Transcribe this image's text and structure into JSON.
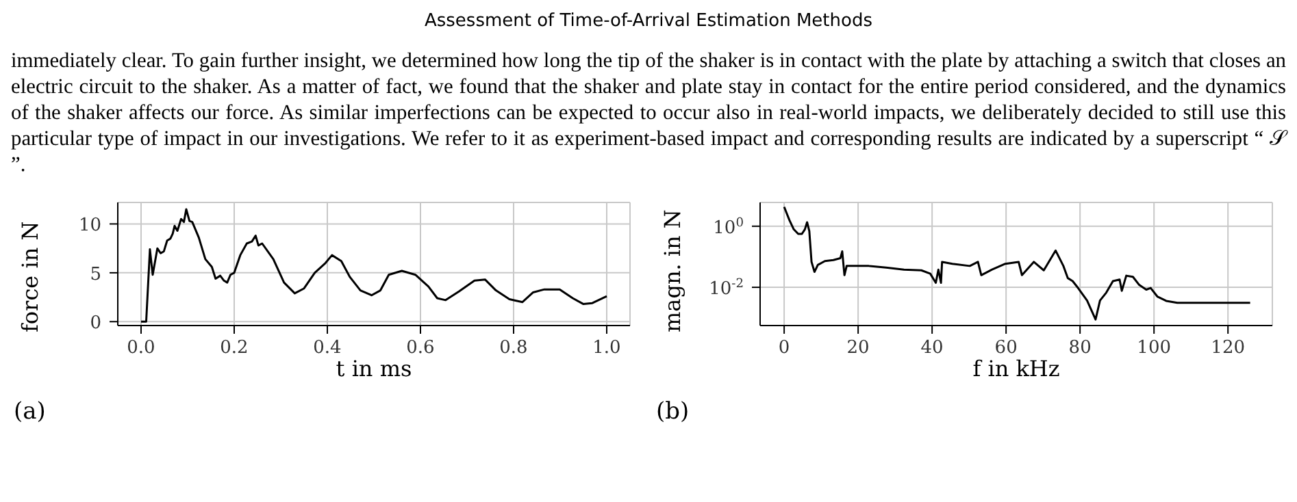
{
  "chart_data": [
    {
      "type": "line",
      "xlabel": "t in ms",
      "ylabel": "force in N",
      "grid": true,
      "annotations": [
        "Assessment of Time-of-Arrival Estimation Methods",
        "immediately clear. To gain further insight, we determined how long the tip of the shaker is in contact with the plate by attaching a switch that closes an electric circuit to the shaker. As a matter of fact, we found that the shaker and plate stay in contact for the entire period considered, and the dynamics of the shaker affects our force. As similar imperfections can be expected to occur also in real-world impacts, we deliberately decided to still use this particular type of impact in our investigations. We refer to it as experiment-based impact and corresponding results are indicated by a superscript “ 𝒮 ”.",
        "(a)"
      ],
      "xlim": [
        -0.05,
        1.05
      ],
      "xticks": [
        {
          "value": 0,
          "label": "0.0"
        },
        0.2,
        0.4,
        0.6,
        0.8,
        {
          "value": 1,
          "label": "1.0"
        }
      ],
      "ylim": [
        -0.4,
        12.2
      ],
      "yticks": [
        0,
        5,
        10
      ],
      "series": [
        {
          "color": "#000000",
          "x": [
            0,
            0.011,
            0.019,
            0.025,
            0.035,
            0.042,
            0.049,
            0.056,
            0.063,
            0.068,
            0.072,
            0.078,
            0.086,
            0.092,
            0.097,
            0.104,
            0.11,
            0.124,
            0.138,
            0.152,
            0.16,
            0.17,
            0.178,
            0.185,
            0.192,
            0.2,
            0.213,
            0.227,
            0.238,
            0.246,
            0.252,
            0.26,
            0.284,
            0.307,
            0.33,
            0.35,
            0.373,
            0.396,
            0.41,
            0.43,
            0.448,
            0.471,
            0.495,
            0.514,
            0.532,
            0.56,
            0.589,
            0.617,
            0.636,
            0.654,
            0.683,
            0.716,
            0.739,
            0.762,
            0.791,
            0.819,
            0.842,
            0.866,
            0.899,
            0.927,
            0.95,
            0.969,
            1.0
          ],
          "values": [
            0,
            0,
            7.4,
            4.8,
            7.5,
            7.0,
            7.2,
            8.3,
            8.5,
            9.0,
            9.8,
            9.3,
            10.5,
            10.2,
            11.5,
            10.3,
            10.2,
            8.6,
            6.4,
            5.6,
            4.4,
            4.7,
            4.2,
            4.0,
            4.8,
            5.0,
            6.8,
            8.0,
            8.2,
            8.8,
            7.8,
            8.0,
            6.4,
            4.0,
            2.9,
            3.4,
            5.0,
            6.0,
            6.8,
            6.2,
            4.6,
            3.2,
            2.7,
            3.2,
            4.8,
            5.2,
            4.8,
            3.6,
            2.4,
            2.2,
            3.1,
            4.2,
            4.3,
            3.2,
            2.3,
            2.0,
            3.0,
            3.3,
            3.3,
            2.4,
            1.8,
            1.9,
            2.6
          ]
        }
      ]
    },
    {
      "type": "line",
      "xlabel": "f in kHz",
      "ylabel": "magn. in N",
      "grid": true,
      "log": "y",
      "annotations": [
        "(b)"
      ],
      "xlim": [
        -6.5,
        132
      ],
      "xticks": [
        0,
        20,
        40,
        60,
        80,
        100,
        120
      ],
      "ylim": [
        0.00056,
        6
      ],
      "yticks": [
        {
          "value": 1,
          "label": "10$^{0}$"
        },
        {
          "value": 0.01,
          "label": "10$^{-2}$"
        }
      ],
      "series": [
        {
          "color": "#000000",
          "x": [
            0,
            1.4,
            2.6,
            3.8,
            4.8,
            5.6,
            6.2,
            6.8,
            7.4,
            8.2,
            9.1,
            11,
            13.3,
            15.2,
            15.7,
            16.3,
            16.9,
            19.3,
            22.9,
            27.6,
            32.4,
            37.1,
            39.5,
            41,
            41.7,
            42.4,
            42.7,
            45.5,
            50.2,
            52.4,
            53.3,
            56.2,
            59.8,
            63.4,
            64.3,
            67.5,
            70.2,
            73.4,
            75.5,
            76.7,
            78,
            79.5,
            81.9,
            84.2,
            85.4,
            87.1,
            88.9,
            90.7,
            91.3,
            92.5,
            94.3,
            96,
            97.9,
            99.1,
            100.9,
            103.3,
            106.3,
            111,
            126
          ],
          "values": [
            4.3,
            1.6,
            0.79,
            0.56,
            0.56,
            0.79,
            1.35,
            0.69,
            0.068,
            0.032,
            0.054,
            0.072,
            0.078,
            0.09,
            0.15,
            0.025,
            0.05,
            0.05,
            0.05,
            0.044,
            0.038,
            0.036,
            0.028,
            0.014,
            0.038,
            0.014,
            0.068,
            0.059,
            0.05,
            0.068,
            0.025,
            0.038,
            0.059,
            0.068,
            0.025,
            0.068,
            0.036,
            0.16,
            0.05,
            0.02,
            0.016,
            0.0094,
            0.0037,
            0.00088,
            0.0037,
            0.0067,
            0.016,
            0.018,
            0.0077,
            0.024,
            0.022,
            0.012,
            0.0084,
            0.0095,
            0.005,
            0.0036,
            0.0031,
            0.0031,
            0.0031
          ]
        }
      ]
    }
  ]
}
